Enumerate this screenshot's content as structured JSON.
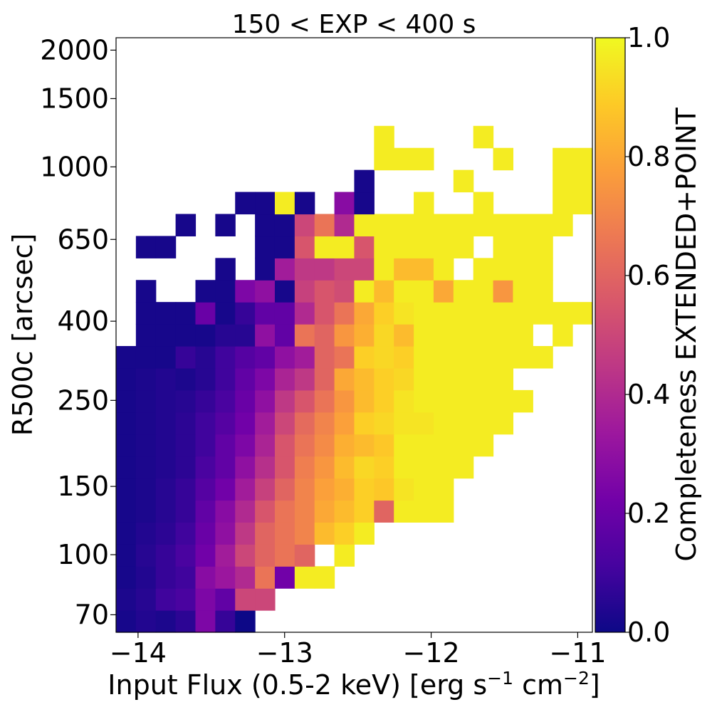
{
  "chart_data": {
    "type": "heatmap",
    "title": "150 < EXP < 400 s",
    "xlabel": "Input Flux (0.5-2 keV) [erg s",
    "xlabel_sup1": "−1",
    "xlabel_mid": " cm",
    "xlabel_sup2": "−2",
    "xlabel_end": "]",
    "ylabel": "R500c [arcsec]",
    "colorbar_label": "Completeness EXTENDED+POINT",
    "colormap": "plasma",
    "colormap_stops": [
      "#0d0887",
      "#46039f",
      "#7201a8",
      "#9c179e",
      "#bd3786",
      "#d8576b",
      "#ed7953",
      "#fb9f3a",
      "#fdca26",
      "#f0f921"
    ],
    "xlim": [
      -14.15,
      -10.9
    ],
    "ylim_log": [
      1.8,
      3.333
    ],
    "x_ticks": [
      -14,
      -13,
      -12,
      -11
    ],
    "x_tick_labels": [
      "−14",
      "−13",
      "−12",
      "−11"
    ],
    "y_ticks": [
      70,
      100,
      150,
      250,
      400,
      650,
      1000,
      1500,
      2000
    ],
    "y_tick_labels": [
      "70",
      "100",
      "150",
      "250",
      "400",
      "650",
      "1000",
      "1500",
      "2000"
    ],
    "cbar_ticks": [
      0,
      0.2,
      0.4,
      0.6,
      0.8,
      1
    ],
    "cbar_tick_labels": [
      "0.0",
      "0.2",
      "0.4",
      "0.6",
      "0.8",
      "1.0"
    ],
    "x_bin_start": -14.15,
    "x_bin_width": 0.1354,
    "y_bin_start_log": 1.8,
    "y_bin_width_log": 0.05677,
    "cell_note": "z[row][col]; row 0 = lowest R500c bin; null = empty",
    "z": [
      [
        0.02,
        0.04,
        0.03,
        0.06,
        0.25,
        0.08,
        0.0,
        null,
        null,
        null,
        null,
        null,
        null,
        null,
        null,
        null,
        null,
        null,
        null,
        null,
        null,
        null,
        null,
        null
      ],
      [
        0.03,
        0.05,
        0.1,
        0.12,
        0.25,
        0.18,
        0.5,
        0.5,
        null,
        null,
        null,
        null,
        null,
        null,
        null,
        null,
        null,
        null,
        null,
        null,
        null,
        null,
        null,
        null
      ],
      [
        0.02,
        0.04,
        0.08,
        0.1,
        0.28,
        0.33,
        0.4,
        0.65,
        0.22,
        0.97,
        0.97,
        null,
        null,
        null,
        null,
        null,
        null,
        null,
        null,
        null,
        null,
        null,
        null,
        null
      ],
      [
        0.02,
        0.05,
        0.08,
        0.12,
        0.22,
        0.35,
        0.5,
        0.6,
        0.65,
        0.6,
        null,
        0.97,
        null,
        null,
        null,
        null,
        null,
        null,
        null,
        null,
        null,
        null,
        null,
        null
      ],
      [
        0.02,
        0.04,
        0.06,
        0.1,
        0.2,
        0.3,
        0.45,
        0.6,
        0.65,
        0.7,
        0.85,
        0.9,
        0.97,
        null,
        null,
        null,
        null,
        null,
        null,
        null,
        null,
        null,
        null,
        null
      ],
      [
        0.02,
        0.03,
        0.05,
        0.08,
        0.18,
        0.28,
        0.4,
        0.55,
        0.65,
        0.7,
        0.8,
        0.85,
        0.9,
        0.6,
        0.97,
        0.97,
        0.97,
        null,
        null,
        null,
        null,
        null,
        null,
        null
      ],
      [
        0.02,
        0.03,
        0.05,
        0.08,
        0.15,
        0.22,
        0.35,
        0.48,
        0.6,
        0.7,
        0.78,
        0.82,
        0.9,
        0.88,
        0.95,
        0.97,
        0.97,
        null,
        null,
        null,
        null,
        null,
        null,
        null
      ],
      [
        0.02,
        0.03,
        0.04,
        0.06,
        0.12,
        0.18,
        0.3,
        0.42,
        0.55,
        0.68,
        0.75,
        0.85,
        0.92,
        0.9,
        0.97,
        0.97,
        0.97,
        0.97,
        null,
        null,
        null,
        null,
        null,
        null
      ],
      [
        0.02,
        0.03,
        0.04,
        0.06,
        0.1,
        0.18,
        0.25,
        0.38,
        0.55,
        0.65,
        0.72,
        0.82,
        0.85,
        0.88,
        0.97,
        0.97,
        0.97,
        0.97,
        0.97,
        null,
        null,
        null,
        null,
        null
      ],
      [
        0.02,
        0.03,
        0.04,
        0.06,
        0.1,
        0.15,
        0.22,
        0.35,
        0.5,
        0.62,
        0.7,
        0.78,
        0.9,
        0.92,
        0.95,
        0.95,
        0.97,
        0.97,
        0.97,
        0.97,
        null,
        null,
        null,
        null
      ],
      [
        0.02,
        0.03,
        0.04,
        0.05,
        0.08,
        0.12,
        0.2,
        0.3,
        0.45,
        0.55,
        0.65,
        0.75,
        0.85,
        0.9,
        0.95,
        0.97,
        0.97,
        0.97,
        0.97,
        0.97,
        0.97,
        null,
        null,
        null
      ],
      [
        0.02,
        0.03,
        0.04,
        0.03,
        0.05,
        0.1,
        0.18,
        0.25,
        0.38,
        0.45,
        0.6,
        0.8,
        0.85,
        0.9,
        0.92,
        0.97,
        0.97,
        0.97,
        0.97,
        0.97,
        null,
        null,
        null,
        null
      ],
      [
        0.02,
        0.02,
        0.02,
        0.08,
        0.05,
        0.1,
        0.15,
        0.18,
        0.3,
        0.35,
        0.6,
        0.65,
        0.9,
        0.92,
        0.9,
        0.97,
        0.97,
        0.97,
        0.97,
        0.97,
        0.97,
        0.97,
        null,
        null
      ],
      [
        null,
        0.02,
        0.02,
        0.02,
        0.02,
        0.05,
        0.05,
        0.3,
        0.18,
        0.65,
        0.6,
        0.75,
        0.82,
        0.92,
        0.85,
        0.97,
        0.97,
        0.97,
        0.97,
        0.97,
        0.97,
        null,
        0.97,
        null
      ],
      [
        null,
        0.02,
        0.02,
        0.02,
        0.2,
        0.02,
        0.08,
        0.18,
        0.18,
        0.4,
        0.55,
        0.65,
        0.8,
        0.9,
        0.95,
        0.97,
        0.97,
        0.97,
        0.97,
        0.97,
        0.97,
        0.97,
        0.97,
        0.97
      ],
      [
        null,
        0.02,
        null,
        null,
        0.02,
        0.02,
        0.25,
        0.3,
        0.02,
        0.48,
        0.55,
        0.52,
        0.97,
        0.85,
        0.97,
        0.97,
        0.8,
        0.97,
        0.97,
        0.75,
        0.97,
        0.97,
        null,
        null
      ],
      [
        null,
        null,
        null,
        null,
        null,
        0.02,
        null,
        0.02,
        0.35,
        0.45,
        0.45,
        0.5,
        0.5,
        0.97,
        0.85,
        0.85,
        0.97,
        null,
        0.97,
        0.97,
        0.97,
        0.97,
        null,
        null
      ],
      [
        null,
        0.02,
        0.02,
        null,
        null,
        null,
        null,
        0.02,
        0.02,
        0.55,
        0.97,
        0.97,
        0.55,
        0.97,
        0.97,
        0.97,
        0.97,
        0.97,
        null,
        0.97,
        0.97,
        0.97,
        null,
        null
      ],
      [
        null,
        null,
        null,
        0.02,
        null,
        0.02,
        null,
        0.02,
        0.02,
        0.5,
        0.65,
        0.4,
        0.97,
        0.97,
        0.97,
        0.97,
        0.97,
        0.97,
        0.97,
        0.97,
        0.97,
        0.97,
        0.97,
        null
      ],
      [
        null,
        null,
        null,
        null,
        null,
        null,
        0.02,
        0.02,
        0.97,
        0.02,
        null,
        0.28,
        0.02,
        null,
        null,
        0.97,
        null,
        null,
        0.97,
        null,
        null,
        null,
        0.97,
        0.97
      ],
      [
        null,
        null,
        null,
        null,
        null,
        null,
        null,
        null,
        null,
        null,
        null,
        null,
        0.02,
        null,
        null,
        null,
        null,
        0.97,
        null,
        null,
        null,
        null,
        0.97,
        0.97
      ],
      [
        null,
        null,
        null,
        null,
        null,
        null,
        null,
        null,
        null,
        null,
        null,
        null,
        null,
        0.97,
        0.97,
        0.97,
        null,
        null,
        null,
        0.97,
        null,
        null,
        0.97,
        0.97
      ],
      [
        null,
        null,
        null,
        null,
        null,
        null,
        null,
        null,
        null,
        null,
        null,
        null,
        null,
        0.97,
        null,
        null,
        null,
        null,
        0.97,
        null,
        null,
        null,
        null,
        null
      ]
    ]
  }
}
